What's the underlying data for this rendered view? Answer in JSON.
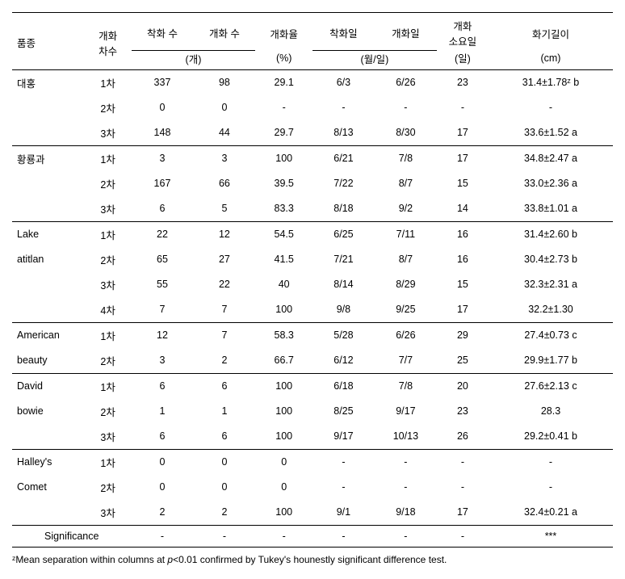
{
  "headers": {
    "variety": "품종",
    "order": "개화\n차수",
    "setCount": "착화 수",
    "bloomCount": "개화 수",
    "bloomRate": "개화율",
    "setDate": "착화일",
    "bloomDate": "개화일",
    "daysToBloom": "개화\n소요일",
    "styleLength": "화기길이"
  },
  "units": {
    "count": "(개)",
    "percent": "(%)",
    "date": "(월/일)",
    "days": "(일)",
    "length": "(cm)"
  },
  "rows": [
    {
      "variety": "대홍",
      "order": "1차",
      "set": "337",
      "bloom": "98",
      "rate": "29.1",
      "sdate": "6/3",
      "bdate": "6/26",
      "days": "23",
      "len": "31.4±1.78ᶻ b"
    },
    {
      "variety": "",
      "order": "2차",
      "set": "0",
      "bloom": "0",
      "rate": "-",
      "sdate": "-",
      "bdate": "-",
      "days": "-",
      "len": "-"
    },
    {
      "variety": "",
      "order": "3차",
      "set": "148",
      "bloom": "44",
      "rate": "29.7",
      "sdate": "8/13",
      "bdate": "8/30",
      "days": "17",
      "len": "33.6±1.52 a",
      "group_end": true
    },
    {
      "variety": "황룡과",
      "order": "1차",
      "set": "3",
      "bloom": "3",
      "rate": "100",
      "sdate": "6/21",
      "bdate": "7/8",
      "days": "17",
      "len": "34.8±2.47 a"
    },
    {
      "variety": "",
      "order": "2차",
      "set": "167",
      "bloom": "66",
      "rate": "39.5",
      "sdate": "7/22",
      "bdate": "8/7",
      "days": "15",
      "len": "33.0±2.36 a"
    },
    {
      "variety": "",
      "order": "3차",
      "set": "6",
      "bloom": "5",
      "rate": "83.3",
      "sdate": "8/18",
      "bdate": "9/2",
      "days": "14",
      "len": "33.8±1.01 a",
      "group_end": true
    },
    {
      "variety": "Lake",
      "order": "1차",
      "set": "22",
      "bloom": "12",
      "rate": "54.5",
      "sdate": "6/25",
      "bdate": "7/11",
      "days": "16",
      "len": "31.4±2.60 b"
    },
    {
      "variety": "atitlan",
      "order": "2차",
      "set": "65",
      "bloom": "27",
      "rate": "41.5",
      "sdate": "7/21",
      "bdate": "8/7",
      "days": "16",
      "len": "30.4±2.73 b"
    },
    {
      "variety": "",
      "order": "3차",
      "set": "55",
      "bloom": "22",
      "rate": "40",
      "sdate": "8/14",
      "bdate": "8/29",
      "days": "15",
      "len": "32.3±2.31 a"
    },
    {
      "variety": "",
      "order": "4차",
      "set": "7",
      "bloom": "7",
      "rate": "100",
      "sdate": "9/8",
      "bdate": "9/25",
      "days": "17",
      "len": "32.2±1.30",
      "group_end": true
    },
    {
      "variety": "American",
      "order": "1차",
      "set": "12",
      "bloom": "7",
      "rate": "58.3",
      "sdate": "5/28",
      "bdate": "6/26",
      "days": "29",
      "len": "27.4±0.73 c"
    },
    {
      "variety": "beauty",
      "order": "2차",
      "set": "3",
      "bloom": "2",
      "rate": "66.7",
      "sdate": "6/12",
      "bdate": "7/7",
      "days": "25",
      "len": "29.9±1.77 b",
      "group_end": true
    },
    {
      "variety": "David",
      "order": "1차",
      "set": "6",
      "bloom": "6",
      "rate": "100",
      "sdate": "6/18",
      "bdate": "7/8",
      "days": "20",
      "len": "27.6±2.13 c"
    },
    {
      "variety": "bowie",
      "order": "2차",
      "set": "1",
      "bloom": "1",
      "rate": "100",
      "sdate": "8/25",
      "bdate": "9/17",
      "days": "23",
      "len": "28.3"
    },
    {
      "variety": "",
      "order": "3차",
      "set": "6",
      "bloom": "6",
      "rate": "100",
      "sdate": "9/17",
      "bdate": "10/13",
      "days": "26",
      "len": "29.2±0.41 b",
      "group_end": true
    },
    {
      "variety": "Halley's",
      "order": "1차",
      "set": "0",
      "bloom": "0",
      "rate": "0",
      "sdate": "-",
      "bdate": "-",
      "days": "-",
      "len": "-"
    },
    {
      "variety": "Comet",
      "order": "2차",
      "set": "0",
      "bloom": "0",
      "rate": "0",
      "sdate": "-",
      "bdate": "-",
      "days": "-",
      "len": "-"
    },
    {
      "variety": "",
      "order": "3차",
      "set": "2",
      "bloom": "2",
      "rate": "100",
      "sdate": "9/1",
      "bdate": "9/18",
      "days": "17",
      "len": "32.4±0.21 a",
      "group_end": true
    }
  ],
  "significance": {
    "label": "Significance",
    "set": "-",
    "bloom": "-",
    "rate": "-",
    "sdate": "-",
    "bdate": "-",
    "days": "-",
    "len": "***"
  },
  "footnote": {
    "marker": "ᶻ",
    "text1": "Mean separation within columns at ",
    "pval": "p",
    "text2": "<0.01 confirmed by Tukey's hounestly significant difference test."
  }
}
